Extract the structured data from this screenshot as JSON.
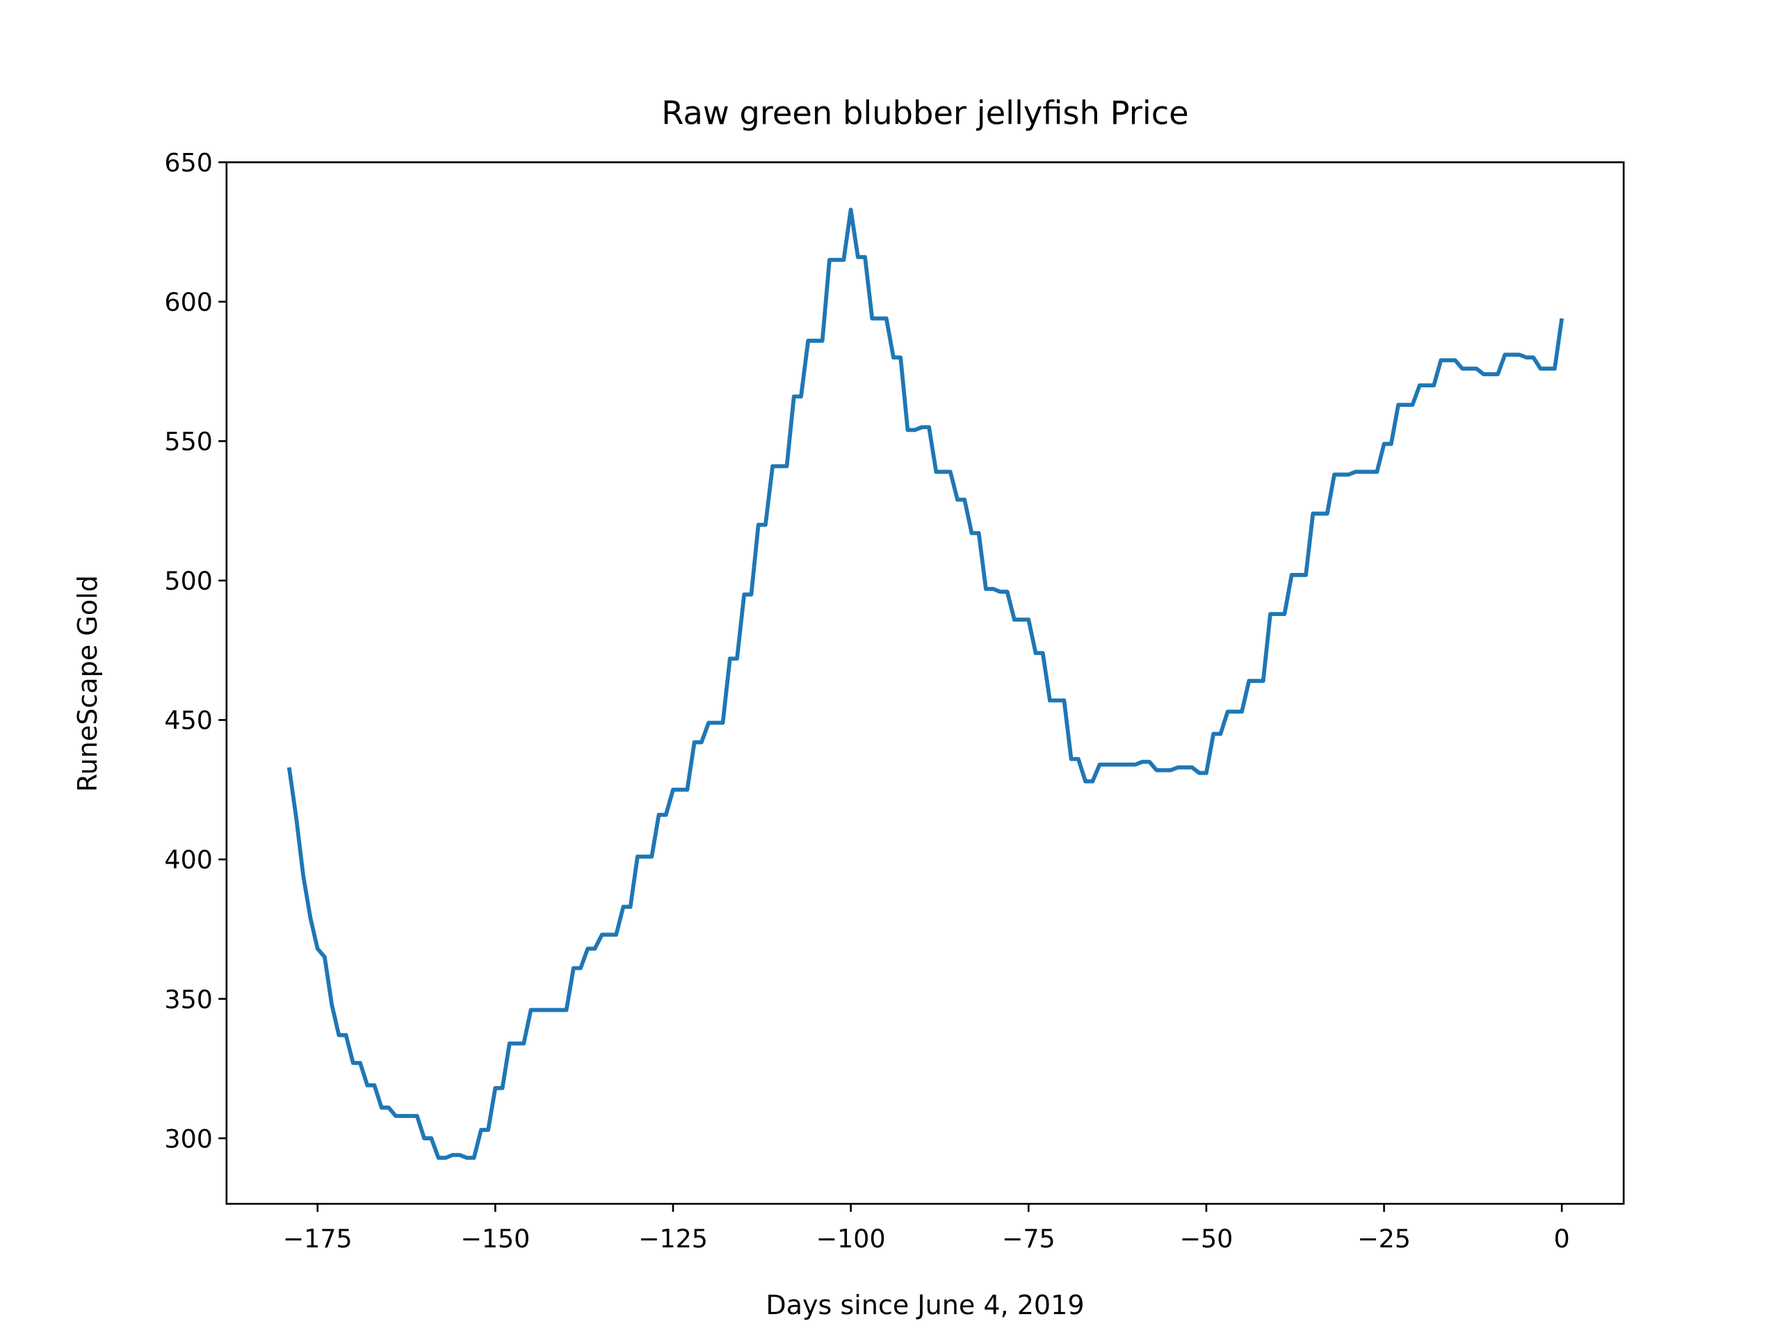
{
  "chart_data": {
    "type": "line",
    "title": "Raw green blubber jellyfish Price",
    "xlabel": "Days since June 4, 2019",
    "ylabel": "RuneScape Gold",
    "color": "#1f77b4",
    "x": [
      -179,
      -178,
      -177,
      -176,
      -175,
      -174,
      -173,
      -172,
      -171,
      -170,
      -169,
      -168,
      -167,
      -166,
      -165,
      -164,
      -163,
      -162,
      -161,
      -160,
      -159,
      -158,
      -157,
      -156,
      -155,
      -154,
      -153,
      -152,
      -151,
      -150,
      -149,
      -148,
      -147,
      -146,
      -145,
      -144,
      -143,
      -142,
      -141,
      -140,
      -139,
      -138,
      -137,
      -136,
      -135,
      -134,
      -133,
      -132,
      -131,
      -130,
      -129,
      -128,
      -127,
      -126,
      -125,
      -124,
      -123,
      -122,
      -121,
      -120,
      -119,
      -118,
      -117,
      -116,
      -115,
      -114,
      -113,
      -112,
      -111,
      -110,
      -109,
      -108,
      -107,
      -106,
      -105,
      -104,
      -103,
      -102,
      -101,
      -100,
      -99,
      -98,
      -97,
      -96,
      -95,
      -94,
      -93,
      -92,
      -91,
      -90,
      -89,
      -88,
      -87,
      -86,
      -85,
      -84,
      -83,
      -82,
      -81,
      -80,
      -79,
      -78,
      -77,
      -76,
      -75,
      -74,
      -73,
      -72,
      -71,
      -70,
      -69,
      -68,
      -67,
      -66,
      -65,
      -64,
      -63,
      -62,
      -61,
      -60,
      -59,
      -58,
      -57,
      -56,
      -55,
      -54,
      -53,
      -52,
      -51,
      -50,
      -49,
      -48,
      -47,
      -46,
      -45,
      -44,
      -43,
      -42,
      -41,
      -40,
      -39,
      -38,
      -37,
      -36,
      -35,
      -34,
      -33,
      -32,
      -31,
      -30,
      -29,
      -28,
      -27,
      -26,
      -25,
      -24,
      -23,
      -22,
      -21,
      -20,
      -19,
      -18,
      -17,
      -16,
      -15,
      -14,
      -13,
      -12,
      -11,
      -10,
      -9,
      -8,
      -7,
      -6,
      -5,
      -4,
      -3,
      -2,
      -1,
      0
    ],
    "values": [
      433,
      415,
      394,
      379,
      368,
      365,
      348,
      337,
      337,
      327,
      327,
      319,
      319,
      311,
      311,
      308,
      308,
      308,
      308,
      300,
      300,
      293,
      293,
      294,
      294,
      293,
      293,
      303,
      303,
      318,
      318,
      334,
      334,
      334,
      346,
      346,
      346,
      346,
      346,
      346,
      361,
      361,
      368,
      368,
      373,
      373,
      373,
      383,
      383,
      401,
      401,
      401,
      416,
      416,
      425,
      425,
      425,
      442,
      442,
      449,
      449,
      449,
      472,
      472,
      495,
      495,
      520,
      520,
      541,
      541,
      541,
      566,
      566,
      586,
      586,
      586,
      615,
      615,
      615,
      633,
      616,
      616,
      594,
      594,
      594,
      580,
      580,
      554,
      554,
      555,
      555,
      539,
      539,
      539,
      529,
      529,
      517,
      517,
      497,
      497,
      496,
      496,
      486,
      486,
      486,
      474,
      474,
      457,
      457,
      457,
      436,
      436,
      428,
      428,
      434,
      434,
      434,
      434,
      434,
      434,
      435,
      435,
      432,
      432,
      432,
      433,
      433,
      433,
      431,
      431,
      445,
      445,
      453,
      453,
      453,
      464,
      464,
      464,
      488,
      488,
      488,
      502,
      502,
      502,
      524,
      524,
      524,
      538,
      538,
      538,
      539,
      539,
      539,
      539,
      549,
      549,
      563,
      563,
      563,
      570,
      570,
      570,
      579,
      579,
      579,
      576,
      576,
      576,
      574,
      574,
      574,
      581,
      581,
      581,
      580,
      580,
      576,
      576,
      576,
      594
    ],
    "xlim": [
      -187.8,
      8.7
    ],
    "ylim": [
      276.5,
      650
    ],
    "xticks": [
      {
        "value": -175,
        "label": "−175"
      },
      {
        "value": -150,
        "label": "−150"
      },
      {
        "value": -125,
        "label": "−125"
      },
      {
        "value": -100,
        "label": "−100"
      },
      {
        "value": -75,
        "label": "−75"
      },
      {
        "value": -50,
        "label": "−50"
      },
      {
        "value": -25,
        "label": "−25"
      },
      0
    ],
    "yticks": [
      300,
      350,
      400,
      450,
      500,
      550,
      600,
      650
    ]
  }
}
